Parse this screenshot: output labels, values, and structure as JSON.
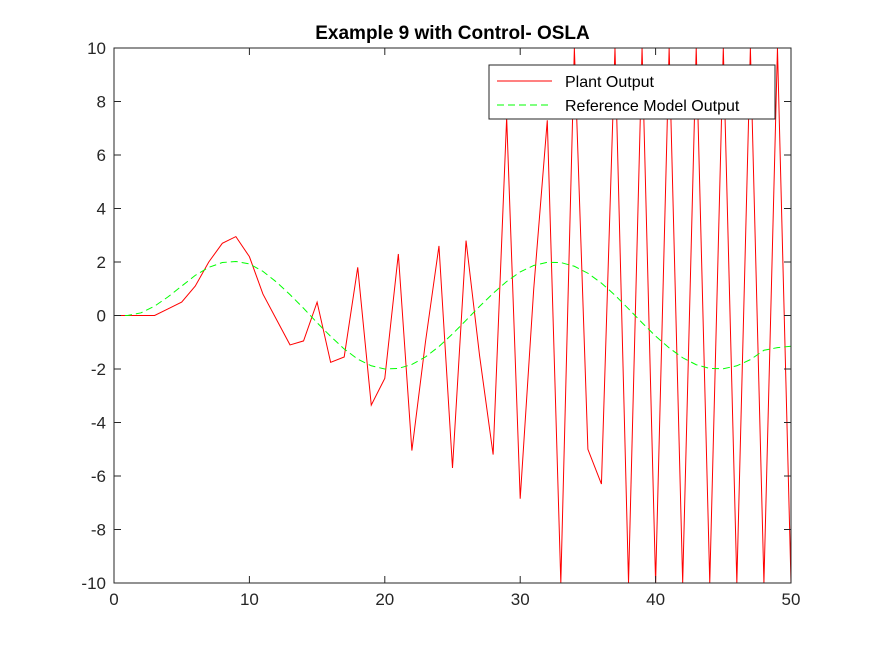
{
  "chart_data": {
    "type": "line",
    "title": "Example 9 with Control- OSLA",
    "xlabel": "",
    "ylabel": "",
    "xlim": [
      0,
      50
    ],
    "ylim": [
      -10,
      10
    ],
    "x_ticks": [
      0,
      10,
      20,
      30,
      40,
      50
    ],
    "y_ticks": [
      10,
      8,
      6,
      4,
      2,
      0,
      -2,
      -4,
      -6,
      -8,
      -10
    ],
    "grid": false,
    "legend_position": "top-right",
    "series": [
      {
        "name": "Plant Output",
        "color": "#ff0000",
        "style": "solid",
        "x": [
          0,
          1,
          2,
          3,
          4,
          5,
          6,
          7,
          8,
          9,
          10,
          11,
          12,
          13,
          14,
          15,
          16,
          17,
          18,
          19,
          20,
          21,
          22,
          23,
          24,
          25,
          26,
          27,
          28,
          29,
          30,
          31,
          32,
          33,
          34,
          35,
          36,
          37,
          38,
          39,
          40,
          41,
          42,
          43,
          44,
          45,
          46,
          47,
          48,
          49,
          50
        ],
        "y": [
          0,
          0,
          0,
          0,
          0.25,
          0.5,
          1.1,
          2,
          2.7,
          2.95,
          2.2,
          0.8,
          -0.15,
          -1.1,
          -0.95,
          0.5,
          -1.75,
          -1.55,
          1.8,
          -3.35,
          -2.35,
          2.3,
          -5.05,
          -1,
          2.6,
          -5.7,
          2.8,
          -1.5,
          -5.2,
          7.4,
          -6.85,
          1,
          7.3,
          -10,
          10,
          -5,
          -6.3,
          10,
          -10,
          10,
          -10,
          10,
          -10,
          10,
          -10,
          10,
          -10,
          10,
          -10,
          10,
          -10
        ]
      },
      {
        "name": "Reference Model Output",
        "color": "#00ff00",
        "style": "dashed",
        "x": [
          0,
          1,
          2,
          3,
          4,
          5,
          6,
          7,
          8,
          9,
          10,
          11,
          12,
          13,
          14,
          15,
          16,
          17,
          18,
          19,
          20,
          21,
          22,
          23,
          24,
          25,
          26,
          27,
          28,
          29,
          30,
          31,
          32,
          33,
          34,
          35,
          36,
          37,
          38,
          39,
          40,
          41,
          42,
          43,
          44,
          45,
          46,
          47,
          48,
          49,
          50
        ],
        "y": [
          0,
          0,
          0.1,
          0.35,
          0.7,
          1.1,
          1.5,
          1.8,
          1.98,
          2.02,
          1.93,
          1.65,
          1.25,
          0.78,
          0.27,
          -0.27,
          -0.78,
          -1.25,
          -1.63,
          -1.88,
          -2.0,
          -1.98,
          -1.83,
          -1.55,
          -1.16,
          -0.69,
          -0.18,
          0.34,
          0.83,
          1.27,
          1.63,
          1.87,
          1.99,
          1.98,
          1.84,
          1.58,
          1.21,
          0.76,
          0.25,
          -0.27,
          -0.77,
          -1.21,
          -1.58,
          -1.84,
          -1.98,
          -1.99,
          -1.88,
          -1.65,
          -1.3,
          -1.2,
          -1.15
        ]
      }
    ]
  }
}
